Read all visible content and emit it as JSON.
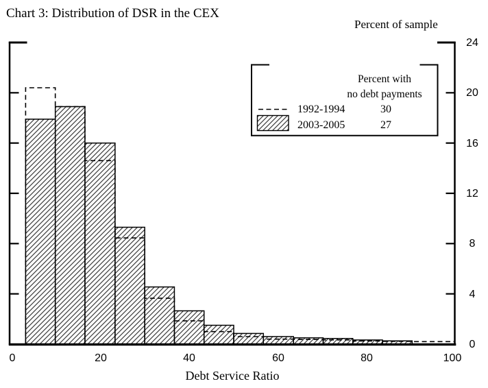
{
  "chart_data": {
    "type": "bar",
    "subtype": "histogram comparison (hatched bars vs dashed step outline)",
    "title": "Chart 3: Distribution of DSR in the CEX",
    "y_axis_title": "Percent of sample",
    "xlabel": "Debt Service Ratio",
    "xlim": [
      0,
      100
    ],
    "ylim": [
      0,
      24
    ],
    "x_tick_labels": [
      "0",
      "20",
      "40",
      "60",
      "80",
      "100"
    ],
    "y_tick_labels": [
      "24",
      "20",
      "16",
      "12",
      "8",
      "4",
      "0"
    ],
    "y_tick_values": [
      24,
      20,
      16,
      12,
      8,
      4,
      0
    ],
    "grid": false,
    "legend_position": "upper-right-inside",
    "bin_edges": [
      3,
      9.7,
      16.4,
      23.2,
      29.9,
      36.6,
      43.3,
      50,
      56.7,
      63.5,
      70.2,
      76.9,
      83.6,
      90.3,
      97.1,
      100
    ],
    "series": [
      {
        "name": "1992-1994",
        "style": "dashed step outline",
        "percent_no_debt_payments": 30,
        "values": [
          20.4,
          18.9,
          14.6,
          8.45,
          3.65,
          1.85,
          1.0,
          0.6,
          0.4,
          0.37,
          0.34,
          0.25,
          0.22,
          0.2,
          0.2
        ]
      },
      {
        "name": "2003-2005",
        "style": "hatched bars",
        "percent_no_debt_payments": 27,
        "values": [
          17.9,
          18.9,
          16.0,
          9.3,
          4.55,
          2.65,
          1.5,
          0.85,
          0.6,
          0.5,
          0.45,
          0.33,
          0.26,
          null,
          null
        ]
      }
    ],
    "legend": {
      "header_line1": "Percent with",
      "header_line2": "no debt payments",
      "rows": [
        {
          "label": "1992-1994",
          "value": "30"
        },
        {
          "label": "2003-2005",
          "value": "27"
        }
      ]
    },
    "colors": {
      "foreground": "#000000",
      "background": "#ffffff",
      "hatch_line": "#3b3b3b"
    }
  }
}
